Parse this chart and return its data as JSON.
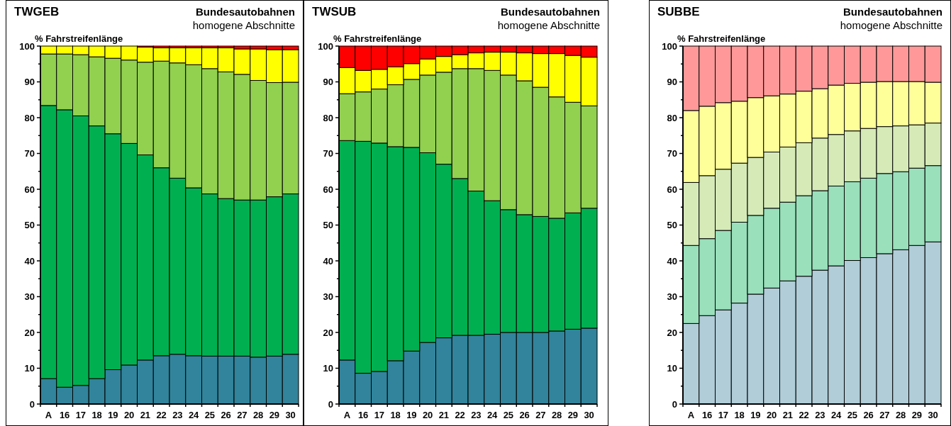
{
  "chart_data": [
    {
      "type": "bar",
      "stacked": true,
      "title": "TWGEB",
      "subtitle": "Bundesautobahnen",
      "annotations": [
        "homogene Abschnitte"
      ],
      "ylabel": "% Fahrstreifenlänge",
      "categories": [
        "A",
        "16",
        "17",
        "18",
        "19",
        "20",
        "21",
        "22",
        "23",
        "24",
        "25",
        "26",
        "27",
        "28",
        "29",
        "30"
      ],
      "ylim": [
        0,
        100
      ],
      "yticks": [
        0,
        {
          "value": 5,
          "label": null
        },
        10,
        {
          "value": 15,
          "label": null
        },
        20,
        {
          "value": 25,
          "label": null
        },
        30,
        {
          "value": 35,
          "label": null
        },
        40,
        {
          "value": 45,
          "label": null
        },
        50,
        {
          "value": 55,
          "label": null
        },
        60,
        {
          "value": 65,
          "label": null
        },
        70,
        {
          "value": 75,
          "label": null
        },
        80,
        {
          "value": 85,
          "label": null
        },
        90,
        {
          "value": 95,
          "label": null
        },
        100
      ],
      "series": [
        {
          "color": "#31849b",
          "values": [
            7.1,
            4.7,
            5.2,
            7.1,
            9.6,
            10.9,
            12.3,
            13.5,
            13.9,
            13.5,
            13.4,
            13.4,
            13.4,
            13.1,
            13.4,
            13.9
          ]
        },
        {
          "color": "#00b050",
          "values": [
            76.3,
            77.5,
            75.3,
            70.6,
            65.9,
            61.9,
            57.3,
            52.5,
            49.2,
            46.9,
            45.3,
            44.0,
            43.6,
            43.9,
            44.5,
            44.8
          ]
        },
        {
          "color": "#92d050",
          "values": [
            14.4,
            15.6,
            17.1,
            19.3,
            21.1,
            23.3,
            25.9,
            29.8,
            32.2,
            34.4,
            35.0,
            35.4,
            35.1,
            33.4,
            31.9,
            31.2
          ]
        },
        {
          "color": "#ffff00",
          "values": [
            2.2,
            2.2,
            2.4,
            3.0,
            3.4,
            3.9,
            4.2,
            3.7,
            4.2,
            4.7,
            5.8,
            6.7,
            7.1,
            8.8,
            9.2,
            9.1
          ]
        },
        {
          "color": "#ff0000",
          "values": [
            0,
            0,
            0,
            0,
            0,
            0,
            0.3,
            0.5,
            0.5,
            0.5,
            0.5,
            0.5,
            0.8,
            0.8,
            1.0,
            1.0
          ]
        }
      ]
    },
    {
      "type": "bar",
      "stacked": true,
      "title": "TWSUB",
      "subtitle": "Bundesautobahnen",
      "annotations": [
        "homogene Abschnitte"
      ],
      "ylabel": "% Fahrstreifenlänge",
      "categories": [
        "A",
        "16",
        "17",
        "18",
        "19",
        "20",
        "21",
        "22",
        "23",
        "24",
        "25",
        "26",
        "27",
        "28",
        "29",
        "30"
      ],
      "ylim": [
        0,
        100
      ],
      "yticks": [
        0,
        {
          "value": 5,
          "label": null
        },
        10,
        {
          "value": 15,
          "label": null
        },
        20,
        {
          "value": 25,
          "label": null
        },
        30,
        {
          "value": 35,
          "label": null
        },
        40,
        {
          "value": 45,
          "label": null
        },
        50,
        {
          "value": 55,
          "label": null
        },
        60,
        {
          "value": 65,
          "label": null
        },
        70,
        {
          "value": 75,
          "label": null
        },
        80,
        {
          "value": 85,
          "label": null
        },
        90,
        {
          "value": 95,
          "label": null
        },
        100
      ],
      "series": [
        {
          "color": "#31849b",
          "values": [
            12.3,
            8.6,
            9.1,
            12.1,
            14.8,
            17.2,
            18.5,
            19.2,
            19.2,
            19.5,
            20.0,
            20.0,
            20.0,
            20.4,
            20.9,
            21.2
          ]
        },
        {
          "color": "#00b050",
          "values": [
            61.3,
            64.8,
            63.8,
            59.8,
            56.9,
            53.0,
            48.5,
            43.8,
            40.3,
            37.3,
            34.3,
            32.9,
            32.4,
            31.5,
            32.5,
            33.5
          ]
        },
        {
          "color": "#92d050",
          "values": [
            13.1,
            13.8,
            15.1,
            17.3,
            19.0,
            21.7,
            25.7,
            30.7,
            34.2,
            36.4,
            37.6,
            37.4,
            36.1,
            33.9,
            30.9,
            28.6
          ]
        },
        {
          "color": "#ffff00",
          "values": [
            7.3,
            6.0,
            5.5,
            5.0,
            4.4,
            4.5,
            4.4,
            3.9,
            4.4,
            5.1,
            6.4,
            7.8,
            9.4,
            12.1,
            13.1,
            13.6
          ]
        },
        {
          "color": "#ff0000",
          "values": [
            6.0,
            6.8,
            6.5,
            5.8,
            4.9,
            3.6,
            2.9,
            2.4,
            1.9,
            1.7,
            1.7,
            1.9,
            2.1,
            2.1,
            2.6,
            3.1
          ]
        }
      ]
    },
    {
      "type": "bar",
      "stacked": true,
      "title": "SUBBE",
      "subtitle": "Bundesautobahnen",
      "annotations": [
        "homogene Abschnitte"
      ],
      "ylabel": "%  Fahrstreifenlänge",
      "categories": [
        "A",
        "16",
        "17",
        "18",
        "19",
        "20",
        "21",
        "22",
        "23",
        "24",
        "25",
        "26",
        "27",
        "28",
        "29",
        "30"
      ],
      "ylim": [
        0,
        100
      ],
      "yticks": [
        0,
        {
          "value": 5,
          "label": null
        },
        10,
        {
          "value": 15,
          "label": null
        },
        20,
        {
          "value": 25,
          "label": null
        },
        30,
        {
          "value": 35,
          "label": null
        },
        40,
        {
          "value": 45,
          "label": null
        },
        50,
        {
          "value": 55,
          "label": null
        },
        60,
        {
          "value": 65,
          "label": null
        },
        70,
        {
          "value": 75,
          "label": null
        },
        80,
        {
          "value": 85,
          "label": null
        },
        90,
        {
          "value": 95,
          "label": null
        },
        100
      ],
      "series": [
        {
          "color": "#b0cdd8",
          "values": [
            22.5,
            24.7,
            26.3,
            28.2,
            30.7,
            32.4,
            34.4,
            35.7,
            37.4,
            38.6,
            40.1,
            40.9,
            42.0,
            43.1,
            44.3,
            45.3
          ]
        },
        {
          "color": "#99e0bb",
          "values": [
            21.8,
            21.5,
            22.2,
            22.6,
            22.0,
            22.3,
            22.0,
            22.5,
            22.2,
            22.3,
            22.0,
            22.2,
            22.4,
            21.8,
            21.6,
            21.3
          ]
        },
        {
          "color": "#d6eab8",
          "values": [
            17.6,
            17.6,
            17.1,
            16.5,
            16.2,
            15.7,
            15.4,
            14.8,
            14.7,
            14.4,
            14.2,
            13.9,
            13.1,
            12.8,
            12.1,
            11.9
          ]
        },
        {
          "color": "#ffff99",
          "values": [
            20.1,
            19.4,
            18.6,
            17.3,
            16.7,
            15.7,
            14.8,
            14.4,
            13.8,
            13.8,
            13.3,
            12.9,
            12.6,
            12.4,
            12.1,
            11.4
          ]
        },
        {
          "color": "#ff9999",
          "values": [
            18.0,
            16.8,
            15.8,
            15.4,
            14.4,
            13.9,
            13.4,
            12.6,
            11.9,
            10.9,
            10.4,
            10.1,
            9.9,
            9.9,
            9.9,
            10.1
          ]
        }
      ]
    }
  ]
}
